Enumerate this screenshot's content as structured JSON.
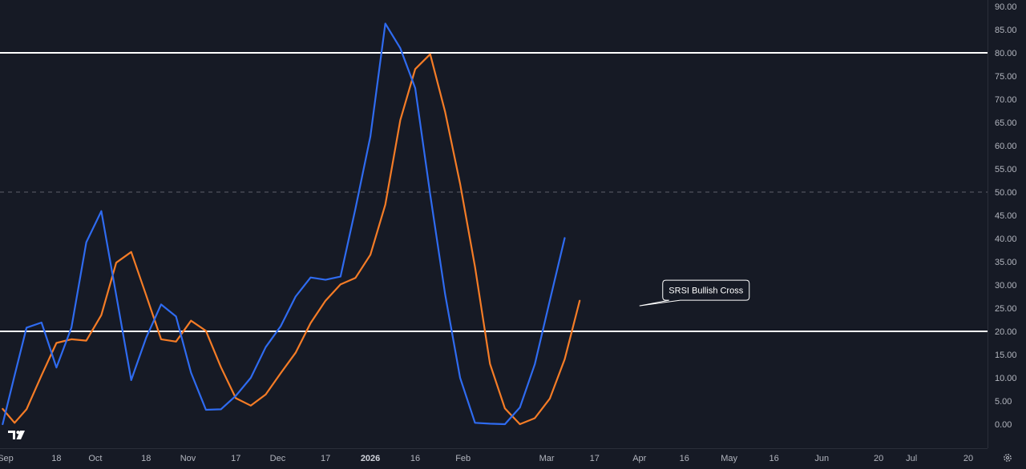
{
  "colors": {
    "background": "#161a25",
    "k_line": "#2f6bf0",
    "d_line": "#f57c26",
    "level_line": "#ffffff",
    "mid_line": "#5d606b",
    "axis_text": "#b2b5be"
  },
  "watermark_icon": "tradingview-logo-icon",
  "settings_icon": "gear-icon",
  "chart_data": {
    "type": "line",
    "ylim": [
      0,
      90
    ],
    "y_ticks": [
      "0.00",
      "5.00",
      "10.00",
      "15.00",
      "20.00",
      "25.00",
      "30.00",
      "35.00",
      "40.00",
      "45.00",
      "50.00",
      "55.00",
      "60.00",
      "65.00",
      "70.00",
      "75.00",
      "80.00",
      "85.00",
      "90.00"
    ],
    "x_tick_labels": [
      {
        "label": "Sep",
        "bold": false
      },
      {
        "label": "18",
        "bold": false
      },
      {
        "label": "Oct",
        "bold": false
      },
      {
        "label": "18",
        "bold": false
      },
      {
        "label": "Nov",
        "bold": false
      },
      {
        "label": "17",
        "bold": false
      },
      {
        "label": "Dec",
        "bold": false
      },
      {
        "label": "17",
        "bold": false
      },
      {
        "label": "2026",
        "bold": true
      },
      {
        "label": "16",
        "bold": false
      },
      {
        "label": "Feb",
        "bold": false
      },
      {
        "label": "Mar",
        "bold": false
      },
      {
        "label": "17",
        "bold": false
      },
      {
        "label": "Apr",
        "bold": false
      },
      {
        "label": "16",
        "bold": false
      },
      {
        "label": "May",
        "bold": false
      },
      {
        "label": "16",
        "bold": false
      },
      {
        "label": "Jun",
        "bold": false
      },
      {
        "label": "20",
        "bold": false
      },
      {
        "label": "Jul",
        "bold": false
      },
      {
        "label": "20",
        "bold": false
      }
    ],
    "x_tick_dates": [
      "2025-09-01",
      "2025-09-18",
      "2025-10-01",
      "2025-10-18",
      "2025-11-01",
      "2025-11-17",
      "2025-12-01",
      "2025-12-17",
      "2026-01-01",
      "2026-01-16",
      "2026-02-01",
      "2026-03-01",
      "2026-03-17",
      "2026-04-01",
      "2026-04-16",
      "2026-05-01",
      "2026-05-16",
      "2026-06-01",
      "2026-06-20",
      "2026-07-01",
      "2026-07-20"
    ],
    "dates": [
      "2025-08-31",
      "2025-09-04",
      "2025-09-08",
      "2025-09-13",
      "2025-09-18",
      "2025-09-23",
      "2025-09-28",
      "2025-10-03",
      "2025-10-08",
      "2025-10-13",
      "2025-10-18",
      "2025-10-23",
      "2025-10-28",
      "2025-11-02",
      "2025-11-07",
      "2025-11-12",
      "2025-11-17",
      "2025-11-22",
      "2025-11-27",
      "2025-12-02",
      "2025-12-07",
      "2025-12-12",
      "2025-12-17",
      "2025-12-22",
      "2025-12-27",
      "2026-01-01",
      "2026-01-06",
      "2026-01-11",
      "2026-01-16",
      "2026-01-21",
      "2026-01-26",
      "2026-01-31",
      "2026-02-05",
      "2026-02-10",
      "2026-02-15",
      "2026-02-20",
      "2026-02-25",
      "2026-03-02",
      "2026-03-07",
      "2026-03-12"
    ],
    "series": [
      {
        "values": [
          0.0,
          10.5,
          20.8,
          21.9,
          12.2,
          20.8,
          39.2,
          45.9,
          27.8,
          9.5,
          18.6,
          25.8,
          23.2,
          11.1,
          3.1,
          3.2,
          6.1,
          10.0,
          16.6,
          21.1,
          27.5,
          31.6,
          31.1,
          31.8,
          46.4,
          62.0,
          86.3,
          81.0,
          72.4,
          49.5,
          28.0,
          10.0,
          0.3,
          0.1,
          0.0,
          3.6,
          12.9,
          26.6,
          40.1,
          null
        ]
      },
      {
        "values": [
          3.3,
          0.3,
          3.2,
          10.5,
          17.5,
          18.3,
          18.0,
          23.5,
          34.8,
          37.1,
          27.8,
          18.3,
          17.8,
          22.3,
          20.1,
          12.3,
          5.6,
          4.0,
          6.4,
          11.0,
          15.4,
          21.8,
          26.6,
          30.1,
          31.5,
          36.5,
          47.3,
          65.5,
          76.5,
          79.7,
          67.3,
          51.8,
          33.9,
          13.0,
          3.4,
          0.0,
          1.3,
          5.5,
          14.0,
          26.6
        ]
      }
    ],
    "hlines": [
      80,
      50,
      20
    ],
    "annotations": [
      {
        "text": "SRSI Bullish Cross",
        "date": "2026-04-01",
        "value": 25.5
      }
    ]
  }
}
